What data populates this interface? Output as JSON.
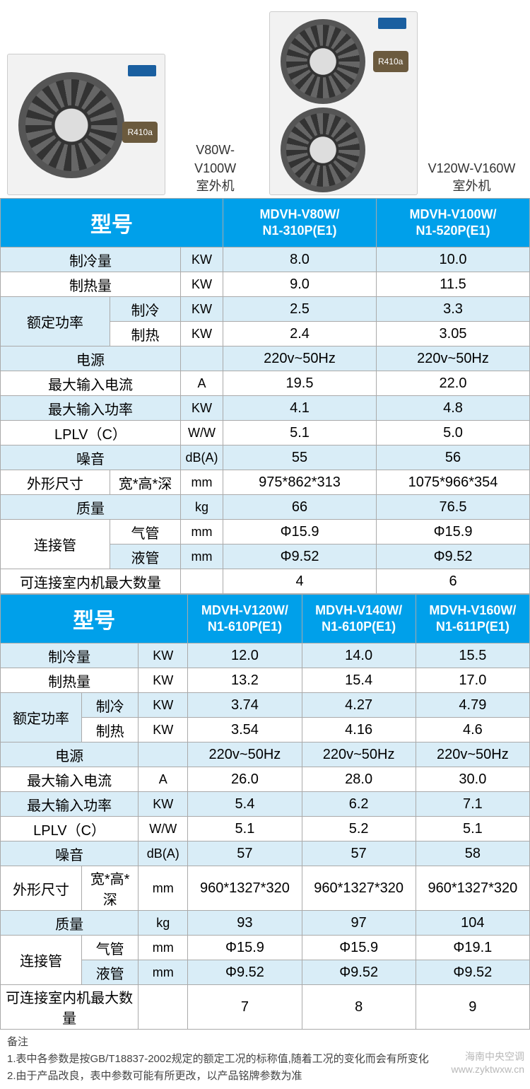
{
  "images": {
    "left_label_line1": "V80W-V100W",
    "left_label_line2": "室外机",
    "right_label_line1": "V120W-V160W",
    "right_label_line2": "室外机",
    "refrigerant": "R410a"
  },
  "table1": {
    "model_header": "型号",
    "cols": [
      "MDVH-V80W/\nN1-310P(E1)",
      "MDVH-V100W/\nN1-520P(E1)"
    ],
    "col_widths": {
      "param": 155,
      "sub": 100,
      "unit": 60,
      "data": 217
    },
    "rows": [
      {
        "label": "制冷量",
        "unit": "KW",
        "vals": [
          "8.0",
          "10.0"
        ]
      },
      {
        "label": "制热量",
        "unit": "KW",
        "vals": [
          "9.0",
          "11.5"
        ]
      },
      {
        "label": "额定功率",
        "sub": "制冷",
        "unit": "KW",
        "vals": [
          "2.5",
          "3.3"
        ],
        "rowspan": 2
      },
      {
        "sub": "制热",
        "unit": "KW",
        "vals": [
          "2.4",
          "3.05"
        ]
      },
      {
        "label": "电源",
        "unit": "",
        "vals": [
          "220v~50Hz",
          "220v~50Hz"
        ]
      },
      {
        "label": "最大输入电流",
        "unit": "A",
        "vals": [
          "19.5",
          "22.0"
        ]
      },
      {
        "label": "最大输入功率",
        "unit": "KW",
        "vals": [
          "4.1",
          "4.8"
        ]
      },
      {
        "label": "LPLV（C）",
        "unit": "W/W",
        "vals": [
          "5.1",
          "5.0"
        ]
      },
      {
        "label": "噪音",
        "unit": "dB(A)",
        "vals": [
          "55",
          "56"
        ]
      },
      {
        "label": "外形尺寸",
        "sub": "宽*高*深",
        "unit": "mm",
        "vals": [
          "975*862*313",
          "1075*966*354"
        ]
      },
      {
        "label": "质量",
        "unit": "kg",
        "vals": [
          "66",
          "76.5"
        ]
      },
      {
        "label": "连接管",
        "sub": "气管",
        "unit": "mm",
        "vals": [
          "Φ15.9",
          "Φ15.9"
        ],
        "rowspan": 2
      },
      {
        "sub": "液管",
        "unit": "mm",
        "vals": [
          "Φ9.52",
          "Φ9.52"
        ]
      },
      {
        "label": "可连接室内机最大数量",
        "unit": "",
        "vals": [
          "4",
          "6"
        ]
      }
    ]
  },
  "table2": {
    "model_header": "型号",
    "cols": [
      "MDVH-V120W/\nN1-610P(E1)",
      "MDVH-V140W/\nN1-610P(E1)",
      "MDVH-V160W/\nN1-611P(E1)"
    ],
    "col_widths": {
      "param": 115,
      "sub": 80,
      "unit": 70,
      "data": 161
    },
    "rows": [
      {
        "label": "制冷量",
        "unit": "KW",
        "vals": [
          "12.0",
          "14.0",
          "15.5"
        ]
      },
      {
        "label": "制热量",
        "unit": "KW",
        "vals": [
          "13.2",
          "15.4",
          "17.0"
        ]
      },
      {
        "label": "额定功率",
        "sub": "制冷",
        "unit": "KW",
        "vals": [
          "3.74",
          "4.27",
          "4.79"
        ],
        "rowspan": 2
      },
      {
        "sub": "制热",
        "unit": "KW",
        "vals": [
          "3.54",
          "4.16",
          "4.6"
        ]
      },
      {
        "label": "电源",
        "unit": "",
        "vals": [
          "220v~50Hz",
          "220v~50Hz",
          "220v~50Hz"
        ]
      },
      {
        "label": "最大输入电流",
        "unit": "A",
        "vals": [
          "26.0",
          "28.0",
          "30.0"
        ]
      },
      {
        "label": "最大输入功率",
        "unit": "KW",
        "vals": [
          "5.4",
          "6.2",
          "7.1"
        ]
      },
      {
        "label": "LPLV（C）",
        "unit": "W/W",
        "vals": [
          "5.1",
          "5.2",
          "5.1"
        ]
      },
      {
        "label": "噪音",
        "unit": "dB(A)",
        "vals": [
          "57",
          "57",
          "58"
        ]
      },
      {
        "label": "外形尺寸",
        "sub": "宽*高*深",
        "unit": "mm",
        "vals": [
          "960*1327*320",
          "960*1327*320",
          "960*1327*320"
        ]
      },
      {
        "label": "质量",
        "unit": "kg",
        "vals": [
          "93",
          "97",
          "104"
        ]
      },
      {
        "label": "连接管",
        "sub": "气管",
        "unit": "mm",
        "vals": [
          "Φ15.9",
          "Φ15.9",
          "Φ19.1"
        ],
        "rowspan": 2
      },
      {
        "sub": "液管",
        "unit": "mm",
        "vals": [
          "Φ9.52",
          "Φ9.52",
          "Φ9.52"
        ]
      },
      {
        "label": "可连接室内机最大数量",
        "unit": "",
        "vals": [
          "7",
          "8",
          "9"
        ]
      }
    ]
  },
  "notes": {
    "title": "备注",
    "l1": "1.表中各参数是按GB/T18837-2002规定的额定工况的标称值,随着工况的变化而会有所变化",
    "l2": "2.由于产品改良，表中参数可能有所更改，以产品铭牌参数为准"
  },
  "watermark": "海南中央空调\nwww.zyktwxw.cn",
  "colors": {
    "header_bg": "#00a0ea",
    "odd_bg": "#d9edf7",
    "even_bg": "#ffffff",
    "border": "#aaaaaa",
    "text": "#333333"
  }
}
